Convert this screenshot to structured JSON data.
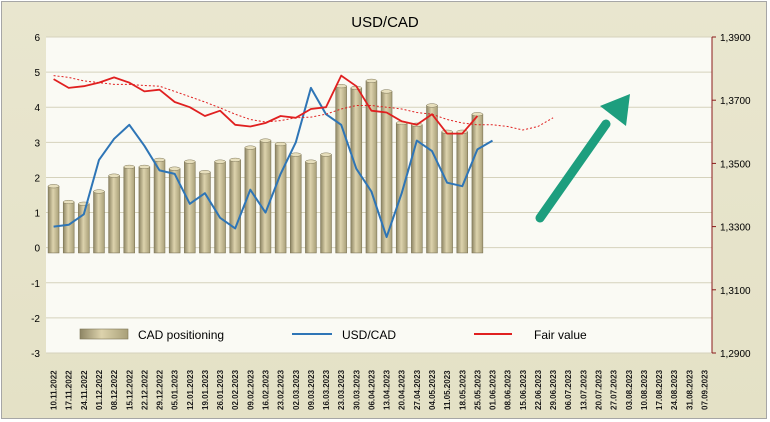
{
  "chart_data": {
    "type": "bar",
    "title": "USD/CAD",
    "categories": [
      "10.11.2022",
      "17.11.2022",
      "24.11.2022",
      "01.12.2022",
      "08.12.2022",
      "15.12.2022",
      "22.12.2022",
      "29.12.2022",
      "05.01.2023",
      "12.01.2023",
      "19.01.2023",
      "26.01.2023",
      "02.02.2023",
      "09.02.2023",
      "16.02.2023",
      "23.02.2023",
      "02.03.2023",
      "09.03.2023",
      "16.03.2023",
      "23.03.2023",
      "30.03.2023",
      "06.04.2023",
      "13.04.2023",
      "20.04.2023",
      "27.04.2023",
      "04.05.2023",
      "11.05.2023",
      "18.05.2023",
      "25.05.2023",
      "01.06.2023",
      "08.06.2023",
      "15.06.2023",
      "22.06.2023",
      "29.06.2023",
      "06.07.2023",
      "13.07.2023",
      "20.07.2023",
      "27.07.2023",
      "03.08.2023",
      "10.08.2023",
      "17.08.2023",
      "24.08.2023",
      "31.08.2023",
      "07.09.2023"
    ],
    "series": [
      {
        "name": "CAD positioning",
        "type": "bar",
        "axis": "left",
        "values": [
          1.75,
          1.3,
          1.25,
          1.6,
          2.05,
          2.3,
          2.3,
          2.5,
          2.25,
          2.45,
          2.15,
          2.45,
          2.5,
          2.85,
          3.05,
          2.95,
          2.65,
          2.45,
          2.65,
          4.6,
          4.55,
          4.75,
          4.45,
          3.55,
          3.5,
          4.05,
          3.3,
          3.3,
          3.8,
          null,
          null,
          null,
          null,
          null,
          null,
          null,
          null,
          null,
          null,
          null,
          null,
          null,
          null,
          null
        ]
      },
      {
        "name": "USD/CAD",
        "type": "line",
        "axis": "left",
        "values": [
          0.6,
          0.65,
          0.95,
          2.5,
          3.1,
          3.5,
          2.9,
          2.2,
          2.1,
          1.25,
          1.55,
          0.85,
          0.55,
          1.65,
          1.0,
          2.1,
          3.0,
          4.55,
          3.8,
          3.5,
          2.25,
          1.6,
          0.3,
          1.55,
          3.05,
          2.75,
          1.85,
          1.75,
          2.8,
          3.05,
          null,
          null,
          null,
          null,
          null,
          null,
          null,
          null,
          null,
          null,
          null,
          null,
          null,
          null
        ]
      },
      {
        "name": "Fair value",
        "type": "line",
        "axis": "left",
        "values": [
          4.8,
          4.55,
          4.6,
          4.7,
          4.85,
          4.7,
          4.45,
          4.5,
          4.15,
          4.0,
          3.75,
          3.9,
          3.5,
          3.45,
          3.55,
          3.75,
          3.7,
          3.95,
          4.0,
          4.9,
          4.6,
          3.9,
          3.85,
          3.6,
          3.5,
          3.8,
          3.25,
          3.25,
          3.75,
          null,
          null,
          null,
          null,
          null,
          null,
          null,
          null,
          null,
          null,
          null,
          null,
          null,
          null,
          null
        ]
      },
      {
        "name": "",
        "type": "line",
        "style": "dotted",
        "axis": "left",
        "values": [
          4.9,
          4.85,
          4.75,
          4.7,
          4.65,
          4.65,
          4.62,
          4.6,
          4.45,
          4.3,
          4.15,
          3.98,
          3.8,
          3.65,
          3.58,
          3.62,
          3.7,
          3.72,
          3.8,
          3.95,
          4.05,
          4.05,
          4.0,
          3.95,
          3.85,
          3.8,
          3.65,
          3.55,
          3.5,
          3.5,
          3.45,
          3.35,
          3.45,
          3.7,
          null,
          null,
          null,
          null,
          null,
          null,
          null,
          null,
          null,
          null
        ]
      }
    ],
    "ylim_left": [
      -3,
      6
    ],
    "yticks_left": [
      "-3",
      "-2",
      "-1",
      "0",
      "1",
      "2",
      "3",
      "4",
      "5",
      "6"
    ],
    "ylim_right": [
      1.29,
      1.39
    ],
    "yticks_right": [
      "1,2900",
      "1,3100",
      "1,3300",
      "1,3500",
      "1,3700",
      "1,3900"
    ],
    "grid": "horizontal",
    "legend": {
      "position": "bottom",
      "entries": [
        "CAD positioning",
        "USD/CAD",
        "Fair value"
      ]
    },
    "annotation": "green up arrow",
    "colors": {
      "bar": "#c6bb90",
      "bar_dark": "#8c8460",
      "usdcad": "#2e75b6",
      "fair_value": "#e02020",
      "dotted": "#e02020",
      "arrow": "#1d9e7e",
      "plot_bg": "#fafaf4",
      "frame_bg": "#e6e3c9"
    }
  }
}
